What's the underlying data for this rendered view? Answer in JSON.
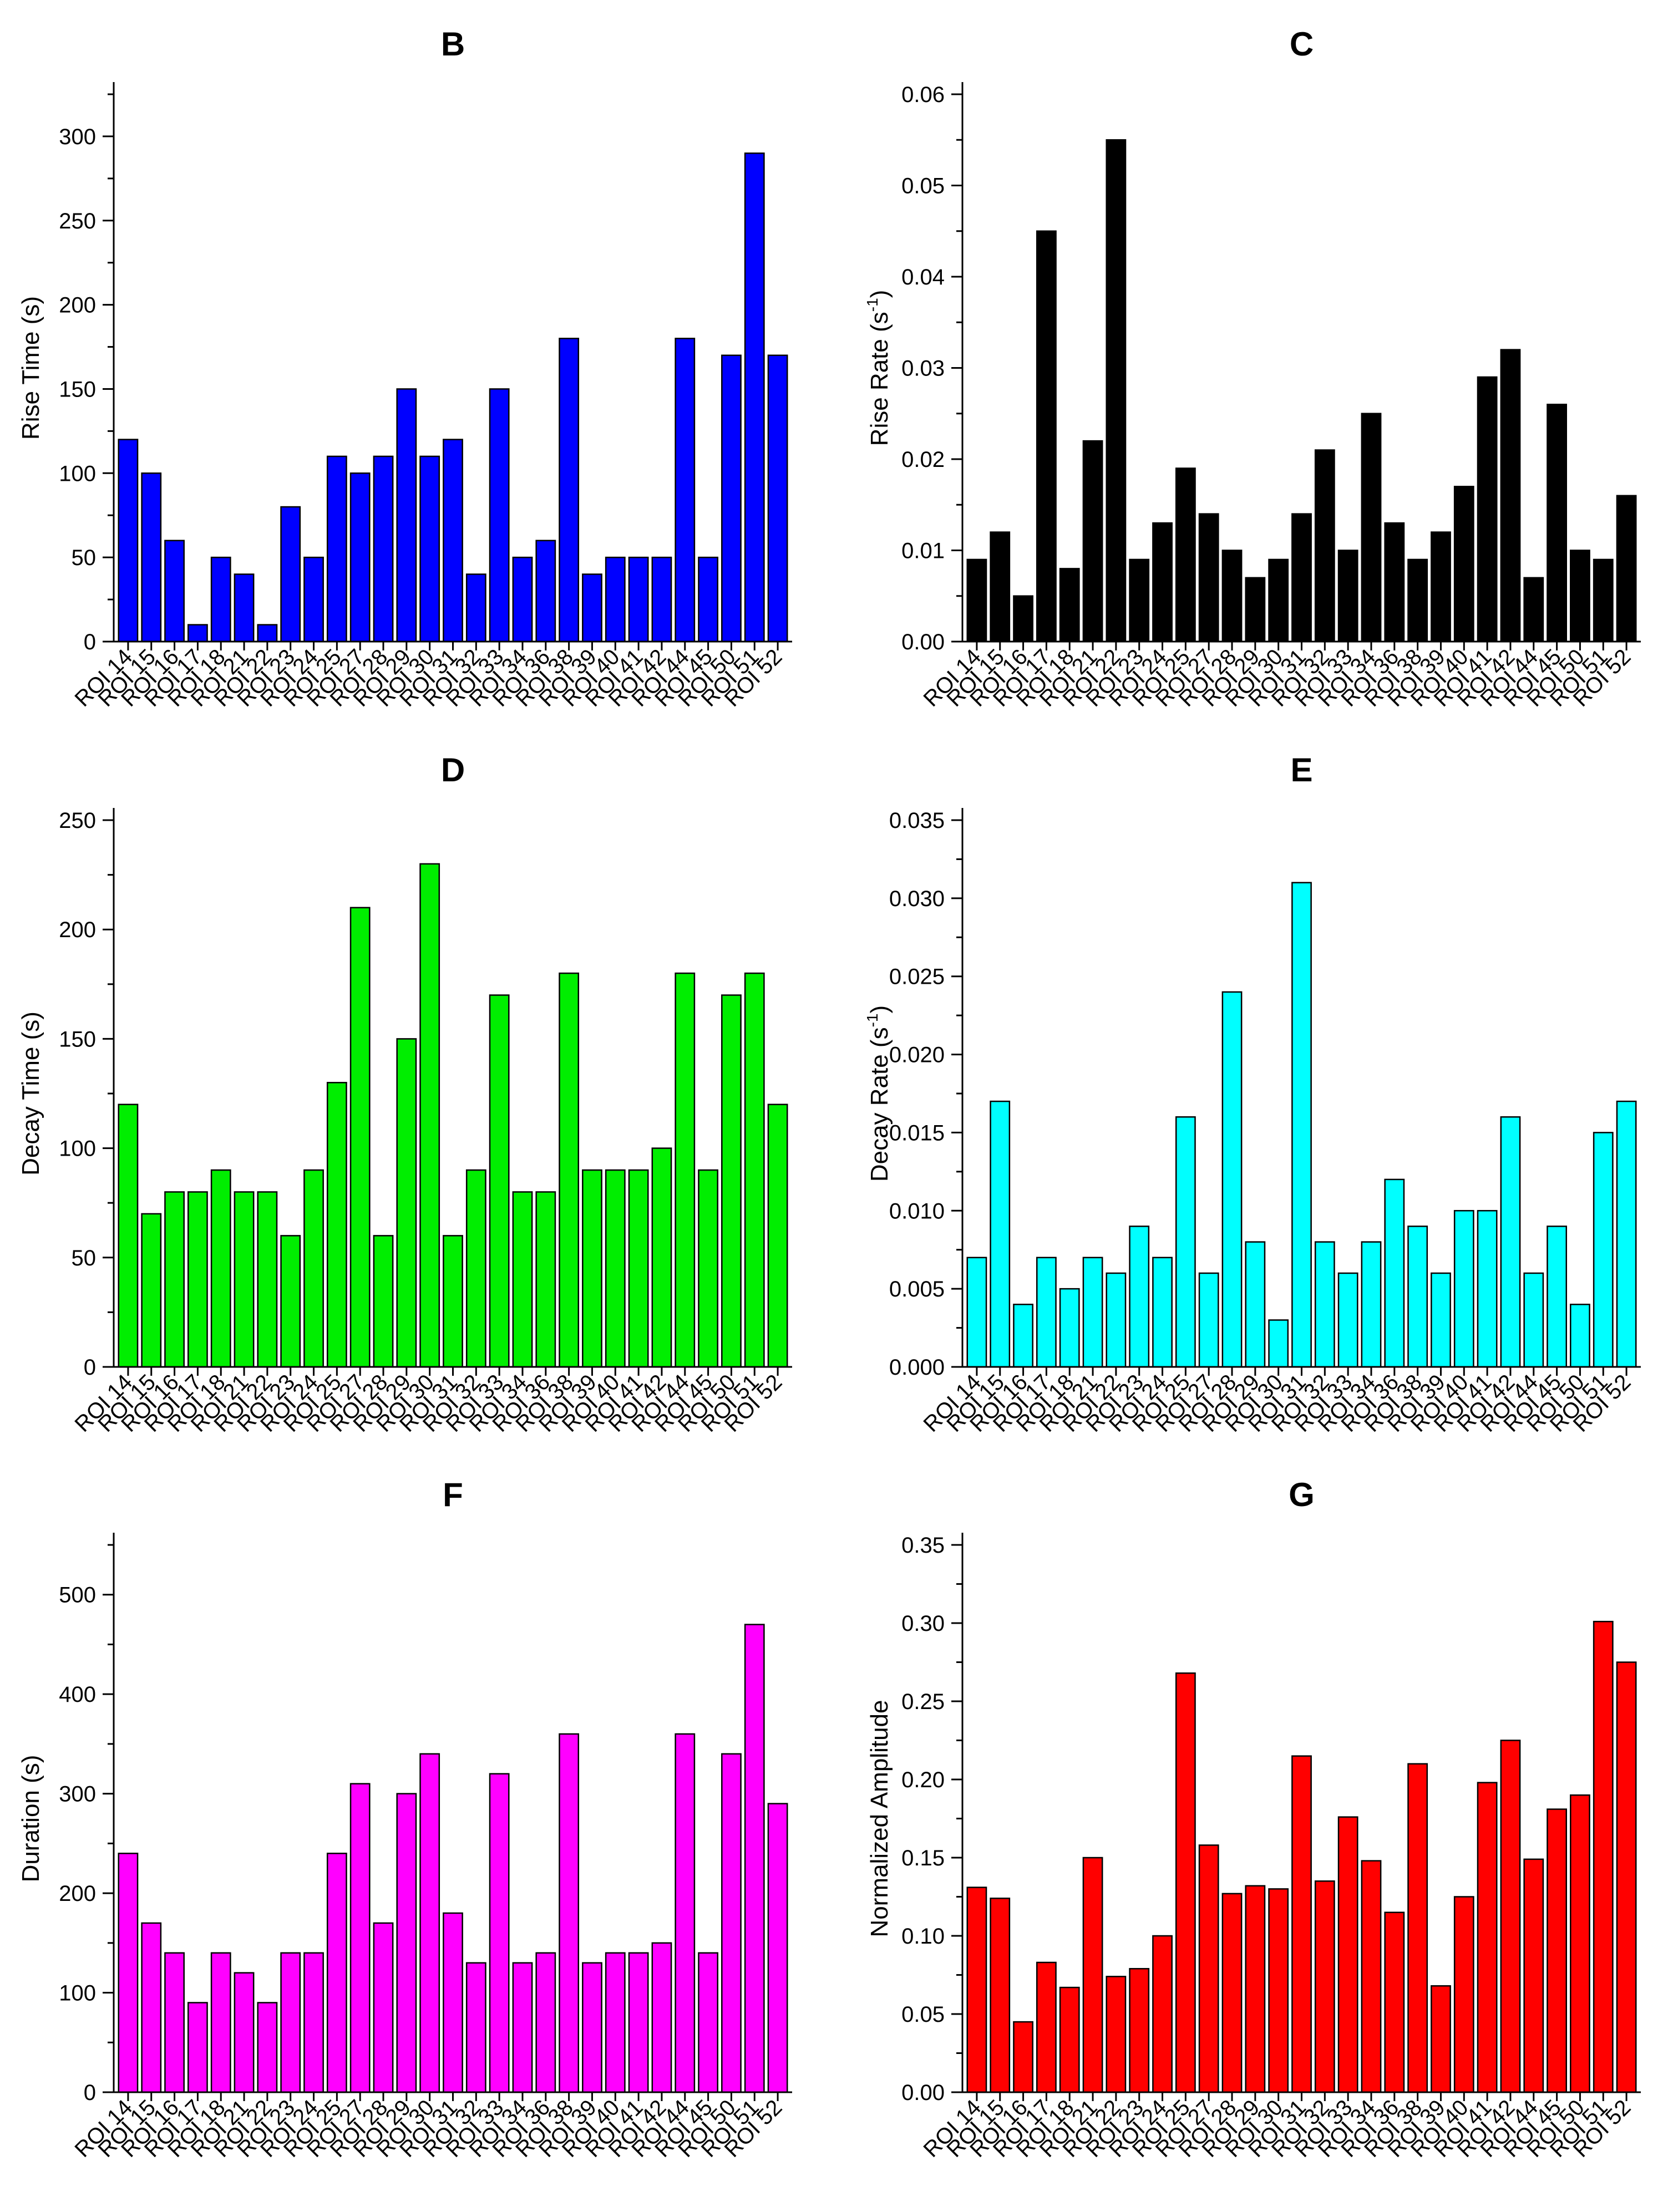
{
  "figure": {
    "description_free": true,
    "categories": [
      "ROI 14",
      "ROI 15",
      "ROI 16",
      "ROI 17",
      "ROI 18",
      "ROI 21",
      "ROI 22",
      "ROI 23",
      "ROI 24",
      "ROI 25",
      "ROI 27",
      "ROI 28",
      "ROI 29",
      "ROI 30",
      "ROI 31",
      "ROI 32",
      "ROI 33",
      "ROI 34",
      "ROI 36",
      "ROI 38",
      "ROI 39",
      "ROI 40",
      "ROI 41",
      "ROI 42",
      "ROI 44",
      "ROI 45",
      "ROI 50",
      "ROI 51",
      "ROI 52"
    ]
  },
  "chart_data": [
    {
      "id": "B",
      "type": "bar",
      "title": "B",
      "xlabel": "",
      "ylabel": "Rise Time (s)",
      "color": "#0000FF",
      "ylim": [
        0,
        325
      ],
      "yticks": [
        0,
        50,
        100,
        150,
        200,
        250,
        300
      ],
      "ytick_labels": [
        "0",
        "50",
        "100",
        "150",
        "200",
        "250",
        "300"
      ],
      "categories": [
        "ROI 14",
        "ROI 15",
        "ROI 16",
        "ROI 17",
        "ROI 18",
        "ROI 21",
        "ROI 22",
        "ROI 23",
        "ROI 24",
        "ROI 25",
        "ROI 27",
        "ROI 28",
        "ROI 29",
        "ROI 30",
        "ROI 31",
        "ROI 32",
        "ROI 33",
        "ROI 34",
        "ROI 36",
        "ROI 38",
        "ROI 39",
        "ROI 40",
        "ROI 41",
        "ROI 42",
        "ROI 44",
        "ROI 45",
        "ROI 50",
        "ROI 51",
        "ROI 52"
      ],
      "values": [
        120,
        100,
        60,
        10,
        50,
        40,
        10,
        80,
        50,
        110,
        100,
        110,
        150,
        110,
        120,
        40,
        150,
        50,
        60,
        180,
        40,
        50,
        50,
        50,
        180,
        50,
        170,
        290,
        170
      ]
    },
    {
      "id": "C",
      "type": "bar",
      "title": "C",
      "xlabel": "",
      "ylabel": "Rise Rate (s",
      "ylabel_sup": "-1",
      "ylabel_tail": ")",
      "color": "#000000",
      "ylim": [
        0,
        0.06
      ],
      "yticks": [
        0,
        0.01,
        0.02,
        0.03,
        0.04,
        0.05,
        0.06
      ],
      "ytick_labels": [
        "0.00",
        "0.01",
        "0.02",
        "0.03",
        "0.04",
        "0.05",
        "0.06"
      ],
      "categories": [
        "ROI 14",
        "ROI 15",
        "ROI 16",
        "ROI 17",
        "ROI 18",
        "ROI 21",
        "ROI 22",
        "ROI 23",
        "ROI 24",
        "ROI 25",
        "ROI 27",
        "ROI 28",
        "ROI 29",
        "ROI 30",
        "ROI 31",
        "ROI 32",
        "ROI 33",
        "ROI 34",
        "ROI 36",
        "ROI 38",
        "ROI 39",
        "ROI 40",
        "ROI 41",
        "ROI 42",
        "ROI 44",
        "ROI 45",
        "ROI 50",
        "ROI 51",
        "ROI 52"
      ],
      "values": [
        0.009,
        0.012,
        0.005,
        0.045,
        0.008,
        0.022,
        0.055,
        0.009,
        0.013,
        0.019,
        0.014,
        0.01,
        0.007,
        0.009,
        0.014,
        0.021,
        0.01,
        0.025,
        0.013,
        0.009,
        0.012,
        0.017,
        0.029,
        0.032,
        0.007,
        0.026,
        0.01,
        0.009,
        0.016
      ]
    },
    {
      "id": "D",
      "type": "bar",
      "title": "D",
      "xlabel": "",
      "ylabel": "Decay Time (s)",
      "color": "#00EE00",
      "ylim": [
        0,
        250
      ],
      "yticks": [
        0,
        50,
        100,
        150,
        200,
        250
      ],
      "ytick_labels": [
        "0",
        "50",
        "100",
        "150",
        "200",
        "250"
      ],
      "categories": [
        "ROI 14",
        "ROI 15",
        "ROI 16",
        "ROI 17",
        "ROI 18",
        "ROI 21",
        "ROI 22",
        "ROI 23",
        "ROI 24",
        "ROI 25",
        "ROI 27",
        "ROI 28",
        "ROI 29",
        "ROI 30",
        "ROI 31",
        "ROI 32",
        "ROI 33",
        "ROI 34",
        "ROI 36",
        "ROI 38",
        "ROI 39",
        "ROI 40",
        "ROI 41",
        "ROI 42",
        "ROI 44",
        "ROI 45",
        "ROI 50",
        "ROI 51",
        "ROI 52"
      ],
      "values": [
        120,
        70,
        80,
        80,
        90,
        80,
        80,
        60,
        90,
        130,
        210,
        60,
        150,
        230,
        60,
        90,
        170,
        80,
        80,
        180,
        90,
        90,
        90,
        100,
        180,
        90,
        170,
        180,
        120
      ]
    },
    {
      "id": "E",
      "type": "bar",
      "title": "E",
      "xlabel": "",
      "ylabel": "Decay Rate (s",
      "ylabel_sup": "-1",
      "ylabel_tail": ")",
      "color": "#00FFFF",
      "ylim": [
        0,
        0.035
      ],
      "yticks": [
        0,
        0.005,
        0.01,
        0.015,
        0.02,
        0.025,
        0.03,
        0.035
      ],
      "ytick_labels": [
        "0.000",
        "0.005",
        "0.010",
        "0.015",
        "0.020",
        "0.025",
        "0.030",
        "0.035"
      ],
      "categories": [
        "ROI 14",
        "ROI 15",
        "ROI 16",
        "ROI 17",
        "ROI 18",
        "ROI 21",
        "ROI 22",
        "ROI 23",
        "ROI 24",
        "ROI 25",
        "ROI 27",
        "ROI 28",
        "ROI 29",
        "ROI 30",
        "ROI 31",
        "ROI 32",
        "ROI 33",
        "ROI 34",
        "ROI 36",
        "ROI 38",
        "ROI 39",
        "ROI 40",
        "ROI 41",
        "ROI 42",
        "ROI 44",
        "ROI 45",
        "ROI 50",
        "ROI 51",
        "ROI 52"
      ],
      "values": [
        0.007,
        0.017,
        0.004,
        0.007,
        0.005,
        0.007,
        0.006,
        0.009,
        0.007,
        0.016,
        0.006,
        0.024,
        0.008,
        0.003,
        0.031,
        0.008,
        0.006,
        0.008,
        0.012,
        0.009,
        0.006,
        0.01,
        0.01,
        0.016,
        0.006,
        0.009,
        0.004,
        0.015,
        0.017
      ]
    },
    {
      "id": "F",
      "type": "bar",
      "title": "F",
      "xlabel": "",
      "ylabel": "Duration (s)",
      "color": "#FF00FF",
      "ylim": [
        0,
        550
      ],
      "yticks": [
        0,
        100,
        200,
        300,
        400,
        500
      ],
      "ytick_labels": [
        "0",
        "100",
        "200",
        "300",
        "400",
        "500"
      ],
      "categories": [
        "ROI 14",
        "ROI 15",
        "ROI 16",
        "ROI 17",
        "ROI 18",
        "ROI 21",
        "ROI 22",
        "ROI 23",
        "ROI 24",
        "ROI 25",
        "ROI 27",
        "ROI 28",
        "ROI 29",
        "ROI 30",
        "ROI 31",
        "ROI 32",
        "ROI 33",
        "ROI 34",
        "ROI 36",
        "ROI 38",
        "ROI 39",
        "ROI 40",
        "ROI 41",
        "ROI 42",
        "ROI 44",
        "ROI 45",
        "ROI 50",
        "ROI 51",
        "ROI 52"
      ],
      "values": [
        240,
        170,
        140,
        90,
        140,
        120,
        90,
        140,
        140,
        240,
        310,
        170,
        300,
        340,
        180,
        130,
        320,
        130,
        140,
        360,
        130,
        140,
        140,
        150,
        360,
        140,
        340,
        470,
        290
      ]
    },
    {
      "id": "G",
      "type": "bar",
      "title": "G",
      "xlabel": "",
      "ylabel": "Normalized Amplitude",
      "color": "#FF0000",
      "ylim": [
        0,
        0.35
      ],
      "yticks": [
        0,
        0.05,
        0.1,
        0.15,
        0.2,
        0.25,
        0.3,
        0.35
      ],
      "ytick_labels": [
        "0.00",
        "0.05",
        "0.10",
        "0.15",
        "0.20",
        "0.25",
        "0.30",
        "0.35"
      ],
      "categories": [
        "ROI 14",
        "ROI 15",
        "ROI 16",
        "ROI 17",
        "ROI 18",
        "ROI 21",
        "ROI 22",
        "ROI 23",
        "ROI 24",
        "ROI 25",
        "ROI 27",
        "ROI 28",
        "ROI 29",
        "ROI 30",
        "ROI 31",
        "ROI 32",
        "ROI 33",
        "ROI 34",
        "ROI 36",
        "ROI 38",
        "ROI 39",
        "ROI 40",
        "ROI 41",
        "ROI 42",
        "ROI 44",
        "ROI 45",
        "ROI 50",
        "ROI 51",
        "ROI 52"
      ],
      "values": [
        0.131,
        0.124,
        0.045,
        0.083,
        0.067,
        0.15,
        0.074,
        0.079,
        0.1,
        0.268,
        0.158,
        0.127,
        0.132,
        0.13,
        0.215,
        0.135,
        0.176,
        0.148,
        0.115,
        0.21,
        0.068,
        0.125,
        0.198,
        0.225,
        0.149,
        0.181,
        0.19,
        0.301,
        0.275
      ]
    }
  ]
}
